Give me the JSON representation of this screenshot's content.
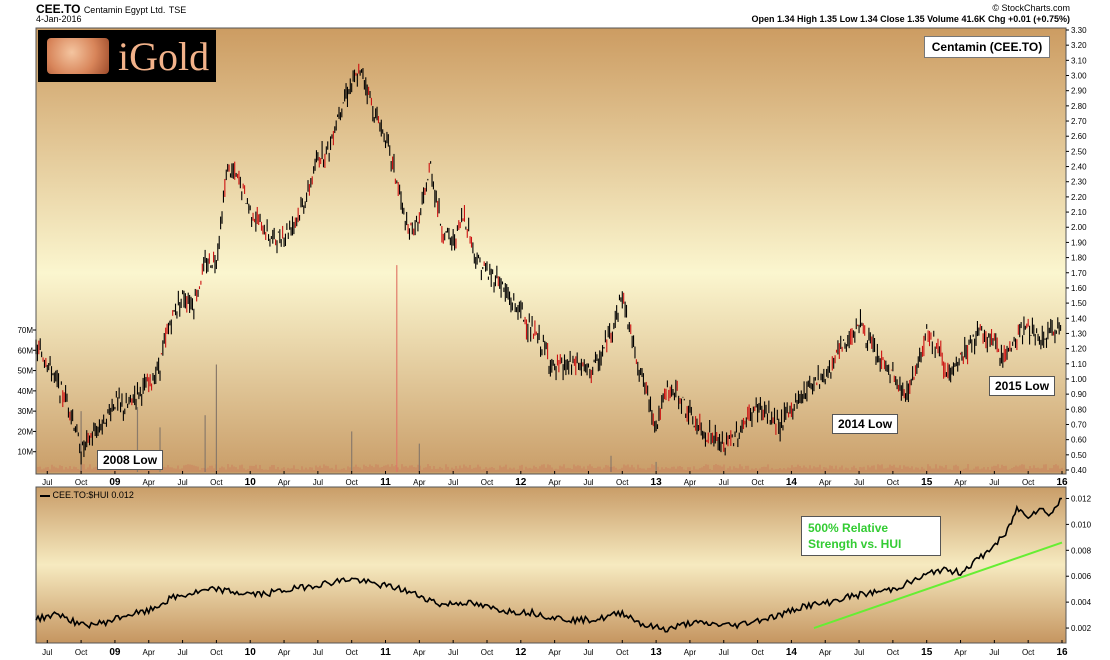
{
  "header": {
    "symbol": "CEE.TO",
    "company": "Centamin Egypt Ltd.",
    "exchange": "TSE",
    "date": "4-Jan-2016",
    "source": "© StockCharts.com",
    "quote": "Open 1.34 High 1.35 Low 1.34 Close 1.35 Volume 41.6K Chg +0.01 (+0.75%)",
    "logo_text": "iGold"
  },
  "colors": {
    "panel_top": "#fbf6cf",
    "panel_bottom": "#c99d68",
    "price_bar": "#000000",
    "down_bar": "#cc1111",
    "volume": "#cc7a5a",
    "trendline": "#66ee33",
    "annotation_green": "#33cc33"
  },
  "chart_data": [
    {
      "type": "line",
      "title": "Centamin (CEE.TO)",
      "ylabel": "",
      "y_scale": "linear",
      "ylim": [
        0.4,
        3.3
      ],
      "y_ticks": [
        0.4,
        0.5,
        0.6,
        0.7,
        0.8,
        0.9,
        1.0,
        1.1,
        1.2,
        1.3,
        1.4,
        1.5,
        1.6,
        1.7,
        1.8,
        1.9,
        2.0,
        2.1,
        2.2,
        2.3,
        2.4,
        2.5,
        2.6,
        2.7,
        2.8,
        2.9,
        3.0,
        3.1,
        3.2,
        3.3
      ],
      "x_ticks": [
        "Jul",
        "Oct",
        "09",
        "Apr",
        "Jul",
        "Oct",
        "10",
        "Apr",
        "Jul",
        "Oct",
        "11",
        "Apr",
        "Jul",
        "Oct",
        "12",
        "Apr",
        "Jul",
        "Oct",
        "13",
        "Apr",
        "Jul",
        "Oct",
        "14",
        "Apr",
        "Jul",
        "Oct",
        "15",
        "Apr",
        "Jul",
        "Oct",
        "16"
      ],
      "x_tick_dates": [
        "2008-07",
        "2008-10",
        "2009-01",
        "2009-04",
        "2009-07",
        "2009-10",
        "2010-01",
        "2010-04",
        "2010-07",
        "2010-10",
        "2011-01",
        "2011-04",
        "2011-07",
        "2011-10",
        "2012-01",
        "2012-04",
        "2012-07",
        "2012-10",
        "2013-01",
        "2013-04",
        "2013-07",
        "2013-10",
        "2014-01",
        "2014-04",
        "2014-07",
        "2014-10",
        "2015-01",
        "2015-04",
        "2015-07",
        "2015-10",
        "2016-01"
      ],
      "grid": false,
      "series": [
        {
          "points": [
            [
              "2008-06",
              1.2
            ],
            [
              "2008-07",
              1.12
            ],
            [
              "2008-08",
              0.95
            ],
            [
              "2008-09",
              0.82
            ],
            [
              "2008-10",
              0.52
            ],
            [
              "2008-11",
              0.63
            ],
            [
              "2008-12",
              0.72
            ],
            [
              "2009-01",
              0.85
            ],
            [
              "2009-02",
              0.8
            ],
            [
              "2009-03",
              0.92
            ],
            [
              "2009-04",
              0.95
            ],
            [
              "2009-05",
              1.1
            ],
            [
              "2009-06",
              1.4
            ],
            [
              "2009-07",
              1.55
            ],
            [
              "2009-08",
              1.5
            ],
            [
              "2009-09",
              1.75
            ],
            [
              "2009-10",
              1.8
            ],
            [
              "2009-11",
              2.4
            ],
            [
              "2009-12",
              2.3
            ],
            [
              "2010-01",
              2.12
            ],
            [
              "2010-02",
              2.0
            ],
            [
              "2010-03",
              1.92
            ],
            [
              "2010-04",
              1.95
            ],
            [
              "2010-05",
              2.05
            ],
            [
              "2010-06",
              2.2
            ],
            [
              "2010-07",
              2.45
            ],
            [
              "2010-08",
              2.52
            ],
            [
              "2010-09",
              2.8
            ],
            [
              "2010-10",
              2.95
            ],
            [
              "2010-11",
              3.02
            ],
            [
              "2010-12",
              2.75
            ],
            [
              "2011-01",
              2.6
            ],
            [
              "2011-02",
              2.3
            ],
            [
              "2011-03",
              1.95
            ],
            [
              "2011-04",
              2.05
            ],
            [
              "2011-05",
              2.4
            ],
            [
              "2011-06",
              1.98
            ],
            [
              "2011-07",
              1.9
            ],
            [
              "2011-08",
              2.08
            ],
            [
              "2011-09",
              1.8
            ],
            [
              "2011-10",
              1.7
            ],
            [
              "2011-11",
              1.66
            ],
            [
              "2011-12",
              1.52
            ],
            [
              "2012-01",
              1.45
            ],
            [
              "2012-02",
              1.3
            ],
            [
              "2012-03",
              1.22
            ],
            [
              "2012-04",
              1.05
            ],
            [
              "2012-05",
              1.08
            ],
            [
              "2012-06",
              1.1
            ],
            [
              "2012-07",
              1.05
            ],
            [
              "2012-08",
              1.12
            ],
            [
              "2012-09",
              1.32
            ],
            [
              "2012-10",
              1.55
            ],
            [
              "2012-11",
              1.22
            ],
            [
              "2012-12",
              0.95
            ],
            [
              "2013-01",
              0.7
            ],
            [
              "2013-02",
              0.92
            ],
            [
              "2013-03",
              0.9
            ],
            [
              "2013-04",
              0.75
            ],
            [
              "2013-05",
              0.65
            ],
            [
              "2013-06",
              0.62
            ],
            [
              "2013-07",
              0.55
            ],
            [
              "2013-08",
              0.62
            ],
            [
              "2013-09",
              0.72
            ],
            [
              "2013-10",
              0.82
            ],
            [
              "2013-11",
              0.75
            ],
            [
              "2013-12",
              0.7
            ],
            [
              "2014-01",
              0.8
            ],
            [
              "2014-02",
              0.9
            ],
            [
              "2014-03",
              1.0
            ],
            [
              "2014-04",
              1.02
            ],
            [
              "2014-05",
              1.15
            ],
            [
              "2014-06",
              1.25
            ],
            [
              "2014-07",
              1.38
            ],
            [
              "2014-08",
              1.22
            ],
            [
              "2014-09",
              1.1
            ],
            [
              "2014-10",
              1.02
            ],
            [
              "2014-11",
              0.88
            ],
            [
              "2014-12",
              1.05
            ],
            [
              "2015-01",
              1.32
            ],
            [
              "2015-02",
              1.2
            ],
            [
              "2015-03",
              1.0
            ],
            [
              "2015-04",
              1.12
            ],
            [
              "2015-05",
              1.25
            ],
            [
              "2015-06",
              1.3
            ],
            [
              "2015-07",
              1.22
            ],
            [
              "2015-08",
              1.15
            ],
            [
              "2015-09",
              1.28
            ],
            [
              "2015-10",
              1.35
            ],
            [
              "2015-11",
              1.25
            ],
            [
              "2015-12",
              1.3
            ],
            [
              "2016-01",
              1.35
            ]
          ]
        }
      ],
      "volume": {
        "y_ticks_label": [
          "10M",
          "20M",
          "30M",
          "40M",
          "50M",
          "60M",
          "70M"
        ],
        "y_ticks_value": [
          10,
          20,
          30,
          40,
          50,
          60,
          70
        ],
        "units": "M",
        "ylim": [
          0,
          70
        ],
        "spikes": [
          [
            "2008-10",
            30
          ],
          [
            "2009-03",
            32
          ],
          [
            "2009-05",
            22
          ],
          [
            "2009-09",
            28
          ],
          [
            "2009-10",
            53
          ],
          [
            "2010-10",
            20
          ],
          [
            "2011-02",
            102
          ],
          [
            "2011-04",
            14
          ],
          [
            "2012-09",
            8
          ],
          [
            "2013-01",
            5
          ]
        ]
      },
      "annotations": [
        "2008 Low",
        "2014 Low",
        "2015 Low"
      ]
    },
    {
      "type": "line",
      "legend": "CEE.TO:$HUI 0.012",
      "legend_position": "top-left",
      "y_scale": "linear",
      "ylim": [
        0.001,
        0.0125
      ],
      "y_ticks": [
        "0.002",
        "0.004",
        "0.006",
        "0.008",
        "0.010",
        "0.012"
      ],
      "y_tick_values": [
        0.002,
        0.004,
        0.006,
        0.008,
        0.01,
        0.012
      ],
      "series": [
        {
          "points": [
            [
              "2008-06",
              0.0027
            ],
            [
              "2008-08",
              0.0031
            ],
            [
              "2008-10",
              0.0022
            ],
            [
              "2008-12",
              0.0024
            ],
            [
              "2009-02",
              0.003
            ],
            [
              "2009-04",
              0.0033
            ],
            [
              "2009-06",
              0.0043
            ],
            [
              "2009-08",
              0.0047
            ],
            [
              "2009-10",
              0.005
            ],
            [
              "2009-12",
              0.0047
            ],
            [
              "2010-02",
              0.0046
            ],
            [
              "2010-04",
              0.0049
            ],
            [
              "2010-06",
              0.0052
            ],
            [
              "2010-08",
              0.0055
            ],
            [
              "2010-10",
              0.0058
            ],
            [
              "2010-12",
              0.0054
            ],
            [
              "2011-02",
              0.0051
            ],
            [
              "2011-04",
              0.0045
            ],
            [
              "2011-06",
              0.0038
            ],
            [
              "2011-08",
              0.004
            ],
            [
              "2011-10",
              0.0036
            ],
            [
              "2011-12",
              0.0033
            ],
            [
              "2012-02",
              0.0032
            ],
            [
              "2012-04",
              0.0028
            ],
            [
              "2012-06",
              0.0026
            ],
            [
              "2012-08",
              0.0027
            ],
            [
              "2012-10",
              0.0032
            ],
            [
              "2012-12",
              0.0022
            ],
            [
              "2013-02",
              0.0019
            ],
            [
              "2013-04",
              0.0024
            ],
            [
              "2013-06",
              0.0023
            ],
            [
              "2013-08",
              0.0022
            ],
            [
              "2013-10",
              0.0026
            ],
            [
              "2013-12",
              0.003
            ],
            [
              "2014-02",
              0.0037
            ],
            [
              "2014-04",
              0.0039
            ],
            [
              "2014-06",
              0.0044
            ],
            [
              "2014-08",
              0.0047
            ],
            [
              "2014-10",
              0.005
            ],
            [
              "2014-12",
              0.0057
            ],
            [
              "2015-02",
              0.0065
            ],
            [
              "2015-04",
              0.0063
            ],
            [
              "2015-06",
              0.0076
            ],
            [
              "2015-08",
              0.0092
            ],
            [
              "2015-09",
              0.0112
            ],
            [
              "2015-10",
              0.0107
            ],
            [
              "2015-11",
              0.0112
            ],
            [
              "2015-12",
              0.0108
            ],
            [
              "2016-01",
              0.012
            ]
          ]
        }
      ],
      "trendline": [
        [
          "2014-03",
          0.002
        ],
        [
          "2016-01",
          0.0086
        ]
      ],
      "annotation": "500% Relative Strength vs. HUI"
    }
  ]
}
